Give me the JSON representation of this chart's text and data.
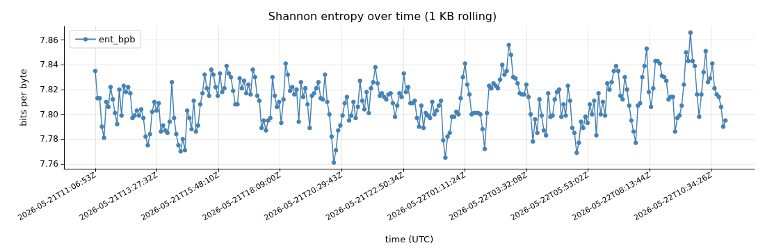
{
  "chart_data": {
    "type": "line",
    "title": "Shannon entropy over time (1 KB rolling)",
    "xlabel": "time (UTC)",
    "ylabel": "bits per byte",
    "x": [
      "2026-05-21T11:06:53",
      "2026-05-21T11:11:53",
      "2026-05-21T11:16:53",
      "2026-05-21T11:21:53",
      "2026-05-21T11:26:53",
      "2026-05-21T11:31:53",
      "2026-05-21T11:36:53",
      "2026-05-21T11:41:53",
      "2026-05-21T11:46:53",
      "2026-05-21T11:51:53",
      "2026-05-21T11:56:53",
      "2026-05-21T12:01:53",
      "2026-05-21T12:06:53",
      "2026-05-21T12:11:53",
      "2026-05-21T12:16:53",
      "2026-05-21T12:21:53",
      "2026-05-21T12:26:53",
      "2026-05-21T12:31:53",
      "2026-05-21T12:36:53",
      "2026-05-21T12:41:53",
      "2026-05-21T12:46:53",
      "2026-05-21T12:51:53",
      "2026-05-21T12:56:53",
      "2026-05-21T13:01:53",
      "2026-05-21T13:06:53",
      "2026-05-21T13:11:53",
      "2026-05-21T13:16:53",
      "2026-05-21T13:21:53",
      "2026-05-21T13:26:53",
      "2026-05-21T13:31:53",
      "2026-05-21T13:36:53",
      "2026-05-21T13:41:53",
      "2026-05-21T13:46:53",
      "2026-05-21T13:51:53",
      "2026-05-21T13:56:53",
      "2026-05-21T14:01:53",
      "2026-05-21T14:06:53",
      "2026-05-21T14:11:53",
      "2026-05-21T14:16:53",
      "2026-05-21T14:21:53",
      "2026-05-21T14:26:53",
      "2026-05-21T14:31:53",
      "2026-05-21T14:36:53",
      "2026-05-21T14:41:53",
      "2026-05-21T14:46:53",
      "2026-05-21T14:51:53",
      "2026-05-21T14:56:53",
      "2026-05-21T15:01:53",
      "2026-05-21T15:06:53",
      "2026-05-21T15:11:53",
      "2026-05-21T15:16:53",
      "2026-05-21T15:21:53",
      "2026-05-21T15:26:53",
      "2026-05-21T15:31:53",
      "2026-05-21T15:36:53",
      "2026-05-21T15:41:53",
      "2026-05-21T15:46:53",
      "2026-05-21T15:51:53",
      "2026-05-21T15:56:53",
      "2026-05-21T16:01:53",
      "2026-05-21T16:06:53",
      "2026-05-21T16:11:53",
      "2026-05-21T16:16:53",
      "2026-05-21T16:21:53",
      "2026-05-21T16:26:53",
      "2026-05-21T16:31:53",
      "2026-05-21T16:36:53",
      "2026-05-21T16:41:53",
      "2026-05-21T16:46:53",
      "2026-05-21T16:51:53",
      "2026-05-21T16:56:53",
      "2026-05-21T17:01:53",
      "2026-05-21T17:06:53",
      "2026-05-21T17:11:53",
      "2026-05-21T17:16:53",
      "2026-05-21T17:21:53",
      "2026-05-21T17:26:53",
      "2026-05-21T17:31:53",
      "2026-05-21T17:36:53",
      "2026-05-21T17:41:53",
      "2026-05-21T17:46:53",
      "2026-05-21T17:51:53",
      "2026-05-21T17:56:53",
      "2026-05-21T18:01:53",
      "2026-05-21T18:06:53",
      "2026-05-21T18:11:53",
      "2026-05-21T18:16:53",
      "2026-05-21T18:21:53",
      "2026-05-21T18:26:53",
      "2026-05-21T18:31:53",
      "2026-05-21T18:36:53",
      "2026-05-21T18:41:53",
      "2026-05-21T18:46:53",
      "2026-05-21T18:51:53",
      "2026-05-21T18:56:53",
      "2026-05-21T19:01:53",
      "2026-05-21T19:06:53",
      "2026-05-21T19:11:53",
      "2026-05-21T19:16:53",
      "2026-05-21T19:21:53",
      "2026-05-21T19:26:53",
      "2026-05-21T19:31:53",
      "2026-05-21T19:36:53",
      "2026-05-21T19:41:53",
      "2026-05-21T19:46:53",
      "2026-05-21T19:51:53",
      "2026-05-21T19:56:53",
      "2026-05-21T20:01:53",
      "2026-05-21T20:06:53",
      "2026-05-21T20:11:53",
      "2026-05-21T20:16:53",
      "2026-05-21T20:21:53",
      "2026-05-21T20:26:53",
      "2026-05-21T20:31:53",
      "2026-05-21T20:36:53",
      "2026-05-21T20:41:53",
      "2026-05-21T20:46:53",
      "2026-05-21T20:51:53",
      "2026-05-21T20:56:53",
      "2026-05-21T21:01:53",
      "2026-05-21T21:06:53",
      "2026-05-21T21:11:53",
      "2026-05-21T21:16:53",
      "2026-05-21T21:21:53",
      "2026-05-21T21:26:53",
      "2026-05-21T21:31:53",
      "2026-05-21T21:36:53",
      "2026-05-21T21:41:53",
      "2026-05-21T21:46:53",
      "2026-05-21T21:51:53",
      "2026-05-21T21:56:53",
      "2026-05-21T22:01:53",
      "2026-05-21T22:06:53",
      "2026-05-21T22:11:53",
      "2026-05-21T22:16:53",
      "2026-05-21T22:21:53",
      "2026-05-21T22:26:53",
      "2026-05-21T22:31:53",
      "2026-05-21T22:36:53",
      "2026-05-21T22:41:53",
      "2026-05-21T22:46:53",
      "2026-05-21T22:51:53",
      "2026-05-21T22:56:53",
      "2026-05-21T23:01:53",
      "2026-05-21T23:06:53",
      "2026-05-21T23:11:53",
      "2026-05-21T23:16:53",
      "2026-05-21T23:21:53",
      "2026-05-21T23:26:53",
      "2026-05-21T23:31:53",
      "2026-05-21T23:36:53",
      "2026-05-21T23:41:53",
      "2026-05-21T23:46:53",
      "2026-05-21T23:51:53",
      "2026-05-21T23:56:53",
      "2026-05-22T00:01:53",
      "2026-05-22T00:06:53",
      "2026-05-22T00:11:53",
      "2026-05-22T00:16:53",
      "2026-05-22T00:21:53",
      "2026-05-22T00:26:53",
      "2026-05-22T00:31:53",
      "2026-05-22T00:36:53",
      "2026-05-22T00:41:53",
      "2026-05-22T00:46:53",
      "2026-05-22T00:51:53",
      "2026-05-22T00:56:53",
      "2026-05-22T01:01:53",
      "2026-05-22T01:06:53",
      "2026-05-22T01:11:53",
      "2026-05-22T01:16:53",
      "2026-05-22T01:21:53",
      "2026-05-22T01:26:53",
      "2026-05-22T01:31:53",
      "2026-05-22T01:36:53",
      "2026-05-22T01:41:53",
      "2026-05-22T01:46:53",
      "2026-05-22T01:51:53",
      "2026-05-22T01:56:53",
      "2026-05-22T02:01:53",
      "2026-05-22T02:06:53",
      "2026-05-22T02:11:53",
      "2026-05-22T02:16:53",
      "2026-05-22T02:21:53",
      "2026-05-22T02:26:53",
      "2026-05-22T02:31:53",
      "2026-05-22T02:36:53",
      "2026-05-22T02:41:53",
      "2026-05-22T02:46:53",
      "2026-05-22T02:51:53",
      "2026-05-22T02:56:53",
      "2026-05-22T03:01:53",
      "2026-05-22T03:06:53",
      "2026-05-22T03:11:53",
      "2026-05-22T03:16:53",
      "2026-05-22T03:21:53",
      "2026-05-22T03:26:53",
      "2026-05-22T03:31:53",
      "2026-05-22T03:36:53",
      "2026-05-22T03:41:53",
      "2026-05-22T03:46:53",
      "2026-05-22T03:51:53",
      "2026-05-22T03:56:53",
      "2026-05-22T04:01:53",
      "2026-05-22T04:06:53",
      "2026-05-22T04:11:53",
      "2026-05-22T04:16:53",
      "2026-05-22T04:21:53",
      "2026-05-22T04:26:53",
      "2026-05-22T04:31:53",
      "2026-05-22T04:36:53",
      "2026-05-22T04:41:53",
      "2026-05-22T04:46:53",
      "2026-05-22T04:51:53",
      "2026-05-22T04:56:53",
      "2026-05-22T05:01:53",
      "2026-05-22T05:06:53",
      "2026-05-22T05:11:53",
      "2026-05-22T05:16:53",
      "2026-05-22T05:21:53",
      "2026-05-22T05:26:53",
      "2026-05-22T05:31:53",
      "2026-05-22T05:36:53",
      "2026-05-22T05:41:53",
      "2026-05-22T05:46:53",
      "2026-05-22T05:51:53",
      "2026-05-22T05:56:53",
      "2026-05-22T06:01:53",
      "2026-05-22T06:06:53",
      "2026-05-22T06:11:53",
      "2026-05-22T06:16:53",
      "2026-05-22T06:21:53",
      "2026-05-22T06:26:53",
      "2026-05-22T06:31:53",
      "2026-05-22T06:36:53",
      "2026-05-22T06:41:53",
      "2026-05-22T06:46:53",
      "2026-05-22T06:51:53",
      "2026-05-22T06:56:53",
      "2026-05-22T07:01:53",
      "2026-05-22T07:06:53",
      "2026-05-22T07:11:53",
      "2026-05-22T07:16:53",
      "2026-05-22T07:21:53",
      "2026-05-22T07:26:53",
      "2026-05-22T07:31:53",
      "2026-05-22T07:36:53",
      "2026-05-22T07:41:53",
      "2026-05-22T07:46:53",
      "2026-05-22T07:51:53",
      "2026-05-22T07:56:53",
      "2026-05-22T08:01:53",
      "2026-05-22T08:06:53",
      "2026-05-22T08:11:53",
      "2026-05-22T08:16:53",
      "2026-05-22T08:21:53",
      "2026-05-22T08:26:53",
      "2026-05-22T08:31:53",
      "2026-05-22T08:36:53",
      "2026-05-22T08:41:53",
      "2026-05-22T08:46:53",
      "2026-05-22T08:51:53",
      "2026-05-22T08:56:53",
      "2026-05-22T09:01:53",
      "2026-05-22T09:06:53",
      "2026-05-22T09:11:53",
      "2026-05-22T09:16:53",
      "2026-05-22T09:21:53",
      "2026-05-22T09:26:53",
      "2026-05-22T09:31:53",
      "2026-05-22T09:36:53",
      "2026-05-22T09:41:53",
      "2026-05-22T09:46:53",
      "2026-05-22T09:51:53",
      "2026-05-22T09:56:53",
      "2026-05-22T10:01:53",
      "2026-05-22T10:06:53",
      "2026-05-22T10:11:53",
      "2026-05-22T10:16:53",
      "2026-05-22T10:21:53",
      "2026-05-22T10:26:53",
      "2026-05-22T10:31:53",
      "2026-05-22T10:36:53",
      "2026-05-22T10:41:53",
      "2026-05-22T10:46:53",
      "2026-05-22T10:51:53",
      "2026-05-22T10:56:53",
      "2026-05-22T11:01:53",
      "2026-05-22T11:06:53"
    ],
    "series": [
      {
        "name": "ent_bpb",
        "color": "#4682b4",
        "values": [
          7.835,
          7.813,
          7.813,
          7.79,
          7.781,
          7.81,
          7.806,
          7.822,
          7.812,
          7.801,
          7.792,
          7.82,
          7.799,
          7.823,
          7.818,
          7.822,
          7.817,
          7.797,
          7.799,
          7.803,
          7.799,
          7.804,
          7.797,
          7.782,
          7.775,
          7.784,
          7.802,
          7.81,
          7.803,
          7.809,
          7.786,
          7.791,
          7.787,
          7.785,
          7.794,
          7.826,
          7.797,
          7.784,
          7.775,
          7.77,
          7.78,
          7.771,
          7.803,
          7.797,
          7.788,
          7.811,
          7.786,
          7.791,
          7.808,
          7.817,
          7.832,
          7.821,
          7.815,
          7.836,
          7.832,
          7.822,
          7.815,
          7.833,
          7.818,
          7.821,
          7.839,
          7.833,
          7.83,
          7.819,
          7.808,
          7.808,
          7.829,
          7.821,
          7.827,
          7.817,
          7.824,
          7.816,
          7.836,
          7.83,
          7.815,
          7.811,
          7.789,
          7.795,
          7.787,
          7.795,
          7.797,
          7.83,
          7.815,
          7.806,
          7.81,
          7.793,
          7.812,
          7.841,
          7.832,
          7.819,
          7.822,
          7.816,
          7.82,
          7.794,
          7.826,
          7.814,
          7.821,
          7.808,
          7.789,
          7.815,
          7.817,
          7.821,
          7.826,
          7.813,
          7.812,
          7.832,
          7.81,
          7.8,
          7.782,
          7.761,
          7.771,
          7.787,
          7.791,
          7.799,
          7.809,
          7.814,
          7.795,
          7.799,
          7.81,
          7.797,
          7.806,
          7.827,
          7.811,
          7.804,
          7.818,
          7.801,
          7.821,
          7.826,
          7.838,
          7.825,
          7.815,
          7.817,
          7.814,
          7.812,
          7.816,
          7.817,
          7.809,
          7.798,
          7.807,
          7.817,
          7.814,
          7.833,
          7.818,
          7.822,
          7.809,
          7.809,
          7.811,
          7.797,
          7.79,
          7.807,
          7.789,
          7.801,
          7.799,
          7.797,
          7.81,
          7.8,
          7.803,
          7.807,
          7.811,
          7.779,
          7.765,
          7.782,
          7.785,
          7.798,
          7.798,
          7.802,
          7.8,
          7.813,
          7.83,
          7.841,
          7.824,
          7.816,
          7.8,
          7.801,
          7.801,
          7.801,
          7.8,
          7.788,
          7.772,
          7.801,
          7.823,
          7.821,
          7.825,
          7.823,
          7.821,
          7.828,
          7.84,
          7.832,
          7.835,
          7.856,
          7.848,
          7.83,
          7.829,
          7.825,
          7.817,
          7.816,
          7.816,
          7.824,
          7.814,
          7.8,
          7.778,
          7.796,
          7.785,
          7.812,
          7.799,
          7.787,
          7.783,
          7.817,
          7.798,
          7.799,
          7.812,
          7.818,
          7.82,
          7.798,
          7.808,
          7.799,
          7.823,
          7.811,
          7.789,
          7.785,
          7.769,
          7.777,
          7.794,
          7.789,
          7.798,
          7.793,
          7.808,
          7.8,
          7.811,
          7.783,
          7.817,
          7.8,
          7.81,
          7.799,
          7.825,
          7.82,
          7.826,
          7.835,
          7.839,
          7.835,
          7.815,
          7.812,
          7.83,
          7.82,
          7.807,
          7.795,
          7.786,
          7.777,
          7.807,
          7.809,
          7.83,
          7.839,
          7.853,
          7.818,
          7.806,
          7.821,
          7.843,
          7.843,
          7.841,
          7.831,
          7.83,
          7.827,
          7.812,
          7.814,
          7.814,
          7.786,
          7.797,
          7.799,
          7.807,
          7.824,
          7.85,
          7.843,
          7.866,
          7.843,
          7.839,
          7.816,
          7.798,
          7.816,
          7.834,
          7.851,
          7.826,
          7.829,
          7.841,
          7.821,
          7.816,
          7.814,
          7.806,
          7.79,
          7.795
        ]
      }
    ],
    "xlim": [
      "2026-05-21T09:55:22",
      "2026-05-22T12:13:25"
    ],
    "xticks": [
      {
        "value": "2026-05-21T11:06:53",
        "label": "2026-05-21T11:06:53Z"
      },
      {
        "value": "2026-05-21T13:27:32",
        "label": "2026-05-21T13:27:32Z"
      },
      {
        "value": "2026-05-21T15:48:10",
        "label": "2026-05-21T15:48:10Z"
      },
      {
        "value": "2026-05-21T18:09:00",
        "label": "2026-05-21T18:09:00Z"
      },
      {
        "value": "2026-05-21T20:29:43",
        "label": "2026-05-21T20:29:43Z"
      },
      {
        "value": "2026-05-21T22:50:34",
        "label": "2026-05-21T22:50:34Z"
      },
      {
        "value": "2026-05-22T01:11:24",
        "label": "2026-05-22T01:11:24Z"
      },
      {
        "value": "2026-05-22T03:32:08",
        "label": "2026-05-22T03:32:08Z"
      },
      {
        "value": "2026-05-22T05:53:02",
        "label": "2026-05-22T05:53:02Z"
      },
      {
        "value": "2026-05-22T08:13:44",
        "label": "2026-05-22T08:13:44Z"
      },
      {
        "value": "2026-05-22T10:34:26",
        "label": "2026-05-22T10:34:26Z"
      }
    ],
    "ylim": [
      7.756,
      7.871
    ],
    "yticks": [
      7.76,
      {
        "value": 7.78,
        "label": "7.78"
      },
      {
        "value": 7.8,
        "label": "7.80"
      },
      7.82,
      7.84,
      7.86
    ],
    "grid": true,
    "legend": "top left",
    "marker": "circle",
    "line_style": "solid"
  }
}
